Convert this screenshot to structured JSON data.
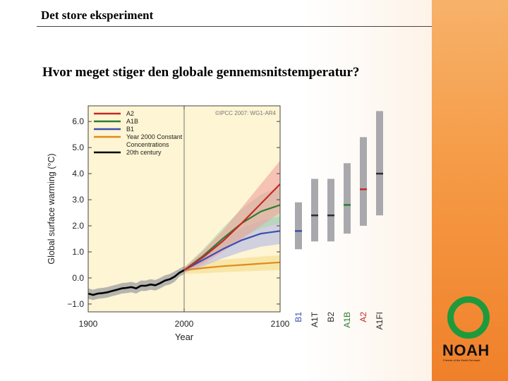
{
  "slide": {
    "header_title": "Det store eksperiment",
    "question": "Hvor meget stiger den globale gennemsnitstemperatur?"
  },
  "logo": {
    "name": "NOAH",
    "tagline": "Friends of the Earth Denmark",
    "colors": {
      "ring": "#1e9a3c",
      "panel": "#f59a45"
    }
  },
  "chart_data": {
    "type": "line",
    "source_note": "©IPCC 2007: WG1-AR4",
    "xlabel": "Year",
    "ylabel": "Global surface warming (°C)",
    "xlim": [
      1900,
      2100
    ],
    "ylim": [
      -1.3,
      6.6
    ],
    "x_ticks": [
      1900,
      2000,
      2100
    ],
    "x_tick_labels": [
      "1900",
      "2000",
      "2100"
    ],
    "y_ticks": [
      -1.0,
      0.0,
      1.0,
      2.0,
      3.0,
      4.0,
      5.0,
      6.0
    ],
    "y_tick_labels": [
      "−1.0",
      "0.0",
      "1.0",
      "2.0",
      "3.0",
      "4.0",
      "5.0",
      "6.0"
    ],
    "legend_position": "top-left",
    "background": "#fdf5d3",
    "series": [
      {
        "name": "A2",
        "color": "#c62828",
        "band": "#f0a0a0",
        "x": [
          2000,
          2020,
          2040,
          2060,
          2080,
          2100
        ],
        "y": [
          0.3,
          0.8,
          1.4,
          2.1,
          2.85,
          3.6
        ],
        "lower": [
          0.2,
          0.55,
          1.0,
          1.5,
          2.0,
          2.5
        ],
        "upper": [
          0.4,
          1.05,
          1.8,
          2.7,
          3.6,
          4.5
        ]
      },
      {
        "name": "A1B",
        "color": "#2e7d32",
        "band": "#a8d8a8",
        "x": [
          2000,
          2020,
          2040,
          2060,
          2080,
          2100
        ],
        "y": [
          0.3,
          0.85,
          1.5,
          2.1,
          2.55,
          2.8
        ],
        "lower": [
          0.2,
          0.6,
          1.1,
          1.55,
          1.9,
          2.1
        ],
        "upper": [
          0.4,
          1.1,
          1.9,
          2.65,
          3.2,
          3.5
        ]
      },
      {
        "name": "B1",
        "color": "#3a4fb0",
        "band": "#b3b8e6",
        "x": [
          2000,
          2020,
          2040,
          2060,
          2080,
          2100
        ],
        "y": [
          0.3,
          0.7,
          1.1,
          1.45,
          1.7,
          1.8
        ],
        "lower": [
          0.2,
          0.45,
          0.75,
          1.0,
          1.2,
          1.3
        ],
        "upper": [
          0.4,
          0.95,
          1.45,
          1.9,
          2.2,
          2.35
        ]
      },
      {
        "name": "Year 2000 Constant Concentrations",
        "legend_lines": [
          "Year 2000 Constant",
          "Concentrations"
        ],
        "color": "#e08a1e",
        "band": "#f5dc8a",
        "x": [
          2000,
          2020,
          2040,
          2060,
          2080,
          2100
        ],
        "y": [
          0.3,
          0.38,
          0.45,
          0.5,
          0.55,
          0.6
        ],
        "lower": [
          0.15,
          0.18,
          0.22,
          0.25,
          0.28,
          0.3
        ],
        "upper": [
          0.45,
          0.6,
          0.7,
          0.76,
          0.82,
          0.87
        ]
      },
      {
        "name": "20th century",
        "color": "#000000",
        "band": "#a8a8a8",
        "x": [
          1900,
          1905,
          1910,
          1915,
          1920,
          1925,
          1930,
          1935,
          1940,
          1945,
          1950,
          1955,
          1960,
          1965,
          1970,
          1975,
          1980,
          1985,
          1990,
          1995,
          2000
        ],
        "y": [
          -0.6,
          -0.65,
          -0.6,
          -0.58,
          -0.55,
          -0.5,
          -0.45,
          -0.4,
          -0.38,
          -0.35,
          -0.4,
          -0.3,
          -0.3,
          -0.25,
          -0.28,
          -0.2,
          -0.1,
          -0.05,
          0.05,
          0.2,
          0.3
        ],
        "lower": [
          -0.8,
          -0.85,
          -0.8,
          -0.78,
          -0.75,
          -0.7,
          -0.65,
          -0.6,
          -0.58,
          -0.55,
          -0.6,
          -0.5,
          -0.5,
          -0.45,
          -0.48,
          -0.4,
          -0.3,
          -0.25,
          -0.15,
          0.05,
          0.15
        ],
        "upper": [
          -0.4,
          -0.45,
          -0.4,
          -0.38,
          -0.35,
          -0.3,
          -0.25,
          -0.2,
          -0.18,
          -0.15,
          -0.2,
          -0.1,
          -0.1,
          -0.05,
          -0.08,
          0.0,
          0.1,
          0.15,
          0.25,
          0.35,
          0.45
        ]
      }
    ],
    "range_bars": [
      {
        "label": "B1",
        "color": "#3a4fb0",
        "low": 1.1,
        "high": 2.9,
        "best": 1.8
      },
      {
        "label": "A1T",
        "color": "#2d2d2d",
        "low": 1.4,
        "high": 3.8,
        "best": 2.4
      },
      {
        "label": "B2",
        "color": "#2d2d2d",
        "low": 1.4,
        "high": 3.8,
        "best": 2.4
      },
      {
        "label": "A1B",
        "color": "#2e7d32",
        "low": 1.7,
        "high": 4.4,
        "best": 2.8
      },
      {
        "label": "A2",
        "color": "#c62828",
        "low": 2.0,
        "high": 5.4,
        "best": 3.4
      },
      {
        "label": "A1FI",
        "color": "#2d2d2d",
        "low": 2.4,
        "high": 6.4,
        "best": 4.0
      }
    ],
    "range_bar_color": "#a9a9ad"
  }
}
